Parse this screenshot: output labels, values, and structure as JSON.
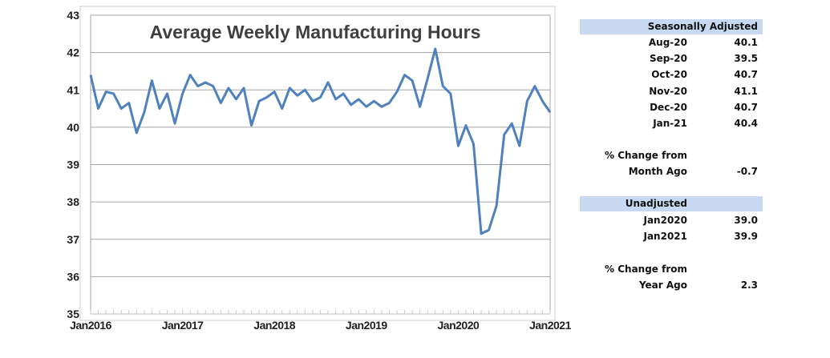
{
  "chart_data": {
    "type": "line",
    "title": "Average Weekly Manufacturing Hours",
    "xlabel": "",
    "ylabel": "",
    "ylim": [
      35,
      43
    ],
    "yticks": [
      "35",
      "36",
      "37",
      "38",
      "39",
      "40",
      "41",
      "42",
      "43"
    ],
    "xtick_labels": [
      "Jan2016",
      "Jan2017",
      "Jan2018",
      "Jan2019",
      "Jan2020",
      "Jan2021"
    ],
    "grid": true,
    "color": "#4f81bd",
    "x_start": "Jan 2016",
    "x_end": "Jan 2021",
    "frequency": "monthly",
    "values": [
      41.4,
      40.5,
      40.95,
      40.9,
      40.5,
      40.65,
      39.85,
      40.4,
      41.25,
      40.5,
      40.9,
      40.1,
      40.9,
      41.4,
      41.1,
      41.2,
      41.1,
      40.65,
      41.05,
      40.75,
      41.05,
      40.05,
      40.7,
      40.8,
      40.95,
      40.5,
      41.05,
      40.85,
      41.0,
      40.7,
      40.8,
      41.2,
      40.75,
      40.9,
      40.6,
      40.75,
      40.55,
      40.7,
      40.55,
      40.65,
      40.95,
      41.4,
      41.25,
      40.55,
      41.3,
      42.1,
      41.1,
      40.9,
      39.5,
      40.05,
      39.55,
      37.15,
      37.25,
      37.9,
      39.8,
      40.1,
      39.5,
      40.7,
      41.1,
      40.7,
      40.4
    ]
  },
  "table": {
    "seasonal_header": "Seasonally Adjusted",
    "seasonal_rows": [
      {
        "label": "Aug-20",
        "value": "40.1"
      },
      {
        "label": "Sep-20",
        "value": "39.5"
      },
      {
        "label": "Oct-20",
        "value": "40.7"
      },
      {
        "label": "Nov-20",
        "value": "41.1"
      },
      {
        "label": "Dec-20",
        "value": "40.7"
      },
      {
        "label": "Jan-21",
        "value": "40.4"
      }
    ],
    "month_change_label1": "% Change from",
    "month_change_label2": "Month Ago",
    "month_change_value": "-0.7",
    "unadjusted_header": "Unadjusted",
    "unadjusted_rows": [
      {
        "label": "Jan2020",
        "value": "39.0"
      },
      {
        "label": "Jan2021",
        "value": "39.9"
      }
    ],
    "year_change_label1": "% Change from",
    "year_change_label2": "Year Ago",
    "year_change_value": "2.3"
  }
}
